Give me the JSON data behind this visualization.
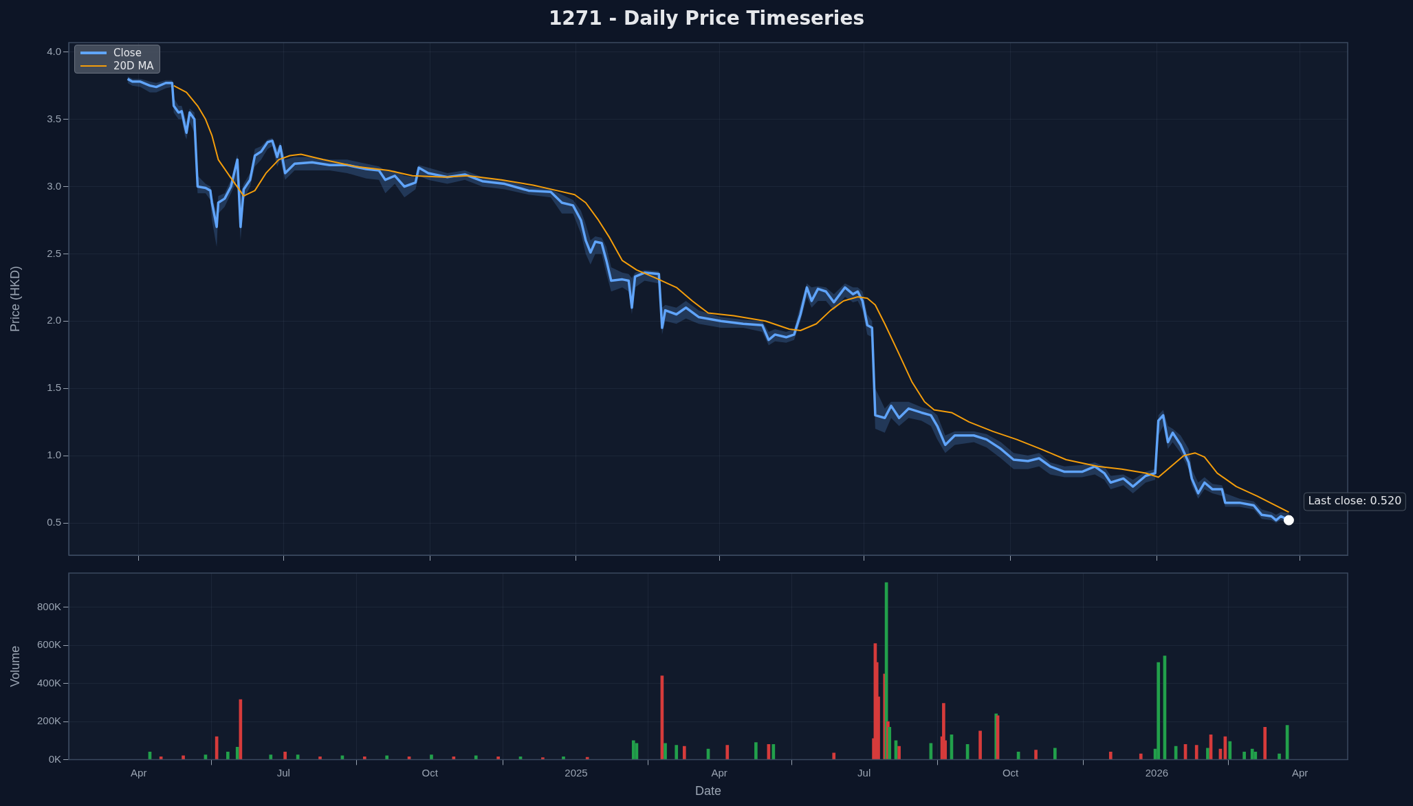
{
  "chart_data": [
    {
      "type": "line",
      "title": "1271 - Daily Price Timeseries",
      "ylabel": "Price (HKD)",
      "legend": "top left",
      "grid": true,
      "tick_labels": "y",
      "xlim": [
        "2024-02-17",
        "2026-05-01"
      ],
      "xticks": [
        {
          "value": "2024-04-01",
          "label": null
        },
        {
          "value": "2024-07-01",
          "label": null
        },
        {
          "value": "2024-10-01",
          "label": null
        },
        {
          "value": "2025-01-01",
          "label": null
        },
        {
          "value": "2025-04-01",
          "label": null
        },
        {
          "value": "2025-07-01",
          "label": null
        },
        {
          "value": "2025-10-01",
          "label": null
        },
        {
          "value": "2026-01-01",
          "label": null
        },
        {
          "value": "2026-04-01",
          "label": null
        }
      ],
      "ylim": [
        0.26,
        4.07
      ],
      "yticks": [
        {
          "value": 0.5,
          "label": "0.5"
        },
        {
          "value": 1.0,
          "label": "1.0"
        },
        {
          "value": 1.5,
          "label": "1.5"
        },
        {
          "value": 2.0,
          "label": "2.0"
        },
        {
          "value": 2.5,
          "label": "2.5"
        },
        {
          "value": 3.0,
          "label": "3.0"
        },
        {
          "value": 3.5,
          "label": "3.5"
        },
        {
          "value": 4.0,
          "label": "4.0"
        }
      ],
      "annotations": [
        {
          "text": "Last close: 0.520",
          "x": "2026-03-25",
          "y": 0.52
        }
      ],
      "series": [
        {
          "name": "Close",
          "color": "#60a5fa",
          "x": [
            "2024-03-25",
            "2024-03-28",
            "2024-04-02",
            "2024-04-08",
            "2024-04-12",
            "2024-04-18",
            "2024-04-22",
            "2024-04-23",
            "2024-04-26",
            "2024-04-28",
            "2024-04-30",
            "2024-05-01",
            "2024-05-03",
            "2024-05-06",
            "2024-05-08",
            "2024-05-13",
            "2024-05-16",
            "2024-05-17",
            "2024-05-20",
            "2024-05-21",
            "2024-05-25",
            "2024-05-29",
            "2024-06-02",
            "2024-06-04",
            "2024-06-06",
            "2024-06-10",
            "2024-06-13",
            "2024-06-17",
            "2024-06-21",
            "2024-06-24",
            "2024-06-27",
            "2024-06-29",
            "2024-07-02",
            "2024-07-08",
            "2024-07-19",
            "2024-07-30",
            "2024-08-10",
            "2024-08-22",
            "2024-08-30",
            "2024-09-03",
            "2024-09-09",
            "2024-09-15",
            "2024-09-22",
            "2024-09-24",
            "2024-09-30",
            "2024-10-12",
            "2024-10-23",
            "2024-11-03",
            "2024-11-17",
            "2024-12-02",
            "2024-12-16",
            "2024-12-23",
            "2024-12-30",
            "2025-01-04",
            "2025-01-07",
            "2025-01-10",
            "2025-01-13",
            "2025-01-17",
            "2025-01-20",
            "2025-01-23",
            "2025-01-30",
            "2025-02-03",
            "2025-02-05",
            "2025-02-07",
            "2025-02-13",
            "2025-02-22",
            "2025-02-24",
            "2025-02-26",
            "2025-03-05",
            "2025-03-11",
            "2025-03-19",
            "2025-04-02",
            "2025-04-16",
            "2025-04-28",
            "2025-05-02",
            "2025-05-06",
            "2025-05-13",
            "2025-05-18",
            "2025-05-22",
            "2025-05-26",
            "2025-05-29",
            "2025-06-02",
            "2025-06-07",
            "2025-06-12",
            "2025-06-19",
            "2025-06-24",
            "2025-06-27",
            "2025-06-30",
            "2025-07-03",
            "2025-07-06",
            "2025-07-08",
            "2025-07-14",
            "2025-07-18",
            "2025-07-23",
            "2025-07-29",
            "2025-08-06",
            "2025-08-12",
            "2025-08-16",
            "2025-08-21",
            "2025-08-27",
            "2025-09-08",
            "2025-09-16",
            "2025-09-25",
            "2025-10-03",
            "2025-10-12",
            "2025-10-19",
            "2025-10-26",
            "2025-11-04",
            "2025-11-15",
            "2025-11-23",
            "2025-11-29",
            "2025-12-03",
            "2025-12-11",
            "2025-12-17",
            "2025-12-25",
            "2025-12-31",
            "2026-01-02",
            "2026-01-05",
            "2026-01-08",
            "2026-01-11",
            "2026-01-16",
            "2026-01-21",
            "2026-01-23",
            "2026-01-27",
            "2026-01-31",
            "2026-02-05",
            "2026-02-11",
            "2026-02-13",
            "2026-02-22",
            "2026-03-03",
            "2026-03-08",
            "2026-03-14",
            "2026-03-17",
            "2026-03-20",
            "2026-03-25"
          ],
          "values": [
            3.8,
            3.78,
            3.78,
            3.75,
            3.74,
            3.77,
            3.77,
            3.6,
            3.55,
            3.56,
            3.45,
            3.4,
            3.55,
            3.5,
            3.0,
            2.99,
            2.97,
            2.88,
            2.7,
            2.88,
            2.91,
            3.0,
            3.2,
            2.7,
            2.98,
            3.05,
            3.23,
            3.26,
            3.33,
            3.34,
            3.22,
            3.3,
            3.1,
            3.17,
            3.18,
            3.16,
            3.16,
            3.13,
            3.12,
            3.05,
            3.08,
            3.0,
            3.03,
            3.14,
            3.1,
            3.07,
            3.09,
            3.04,
            3.02,
            2.97,
            2.96,
            2.88,
            2.86,
            2.75,
            2.6,
            2.51,
            2.59,
            2.58,
            2.45,
            2.3,
            2.31,
            2.3,
            2.1,
            2.33,
            2.36,
            2.35,
            1.95,
            2.08,
            2.05,
            2.1,
            2.03,
            2.0,
            1.98,
            1.97,
            1.86,
            1.9,
            1.88,
            1.9,
            2.05,
            2.25,
            2.15,
            2.24,
            2.22,
            2.14,
            2.25,
            2.2,
            2.22,
            2.15,
            1.97,
            1.95,
            1.3,
            1.28,
            1.37,
            1.28,
            1.35,
            1.32,
            1.3,
            1.22,
            1.08,
            1.15,
            1.15,
            1.12,
            1.05,
            0.97,
            0.96,
            0.98,
            0.92,
            0.88,
            0.88,
            0.92,
            0.87,
            0.8,
            0.83,
            0.77,
            0.85,
            0.87,
            1.26,
            1.3,
            1.1,
            1.17,
            1.08,
            0.95,
            0.83,
            0.72,
            0.8,
            0.75,
            0.75,
            0.65,
            0.65,
            0.63,
            0.56,
            0.55,
            0.52,
            0.55,
            0.52
          ],
          "lower": [
            3.77,
            3.75,
            3.74,
            3.7,
            3.7,
            3.73,
            3.74,
            3.55,
            3.5,
            3.5,
            3.38,
            3.35,
            3.48,
            3.4,
            2.95,
            2.95,
            2.9,
            2.75,
            2.55,
            2.8,
            2.85,
            2.95,
            3.05,
            2.6,
            2.9,
            3.0,
            3.15,
            3.2,
            3.28,
            3.3,
            3.15,
            3.2,
            3.05,
            3.12,
            3.12,
            3.12,
            3.1,
            3.06,
            3.05,
            2.95,
            3.02,
            2.92,
            2.98,
            3.08,
            3.05,
            3.02,
            3.05,
            3.0,
            2.98,
            2.94,
            2.92,
            2.8,
            2.8,
            2.65,
            2.5,
            2.42,
            2.5,
            2.5,
            2.35,
            2.22,
            2.25,
            2.22,
            2.05,
            2.25,
            2.3,
            2.28,
            1.9,
            2.0,
            1.98,
            2.02,
            1.98,
            1.95,
            1.95,
            1.92,
            1.82,
            1.85,
            1.84,
            1.86,
            2.0,
            2.18,
            2.1,
            2.15,
            2.15,
            2.08,
            2.18,
            2.14,
            2.15,
            2.08,
            1.9,
            1.88,
            1.2,
            1.17,
            1.28,
            1.22,
            1.28,
            1.26,
            1.22,
            1.12,
            1.02,
            1.08,
            1.1,
            1.06,
            0.98,
            0.9,
            0.9,
            0.92,
            0.86,
            0.84,
            0.84,
            0.86,
            0.82,
            0.75,
            0.78,
            0.72,
            0.8,
            0.82,
            1.15,
            1.22,
            1.05,
            1.1,
            1.02,
            0.9,
            0.78,
            0.68,
            0.75,
            0.72,
            0.7,
            0.62,
            0.62,
            0.6,
            0.53,
            0.52,
            0.5,
            0.52,
            0.5
          ],
          "upper": [
            3.82,
            3.8,
            3.8,
            3.78,
            3.77,
            3.79,
            3.79,
            3.66,
            3.6,
            3.6,
            3.52,
            3.48,
            3.58,
            3.55,
            3.08,
            3.02,
            3.0,
            2.93,
            2.8,
            2.93,
            2.95,
            3.05,
            3.24,
            2.95,
            3.02,
            3.1,
            3.28,
            3.3,
            3.35,
            3.36,
            3.28,
            3.33,
            3.2,
            3.22,
            3.22,
            3.2,
            3.2,
            3.17,
            3.15,
            3.12,
            3.12,
            3.08,
            3.07,
            3.16,
            3.14,
            3.1,
            3.12,
            3.07,
            3.05,
            3.0,
            2.98,
            2.94,
            2.9,
            2.82,
            2.72,
            2.6,
            2.63,
            2.62,
            2.55,
            2.4,
            2.36,
            2.35,
            2.32,
            2.36,
            2.38,
            2.37,
            2.1,
            2.12,
            2.1,
            2.15,
            2.08,
            2.03,
            2.01,
            2.0,
            1.92,
            1.94,
            1.92,
            1.94,
            2.12,
            2.28,
            2.25,
            2.26,
            2.25,
            2.2,
            2.28,
            2.25,
            2.25,
            2.22,
            2.05,
            2.0,
            1.5,
            1.35,
            1.4,
            1.4,
            1.4,
            1.36,
            1.34,
            1.3,
            1.15,
            1.18,
            1.18,
            1.16,
            1.1,
            1.02,
            1.0,
            1.02,
            0.95,
            0.92,
            0.93,
            0.95,
            0.92,
            0.85,
            0.86,
            0.82,
            0.88,
            0.9,
            1.3,
            1.34,
            1.22,
            1.2,
            1.15,
            1.05,
            0.9,
            0.8,
            0.84,
            0.79,
            0.78,
            0.72,
            0.68,
            0.66,
            0.6,
            0.58,
            0.56,
            0.58,
            0.57
          ]
        },
        {
          "name": "20D MA",
          "color": "#f59e0b",
          "x": [
            "2024-04-23",
            "2024-05-01",
            "2024-05-08",
            "2024-05-13",
            "2024-05-17",
            "2024-05-21",
            "2024-05-28",
            "2024-06-03",
            "2024-06-06",
            "2024-06-13",
            "2024-06-20",
            "2024-06-28",
            "2024-07-05",
            "2024-07-12",
            "2024-07-26",
            "2024-08-15",
            "2024-09-05",
            "2024-09-20",
            "2024-10-10",
            "2024-10-25",
            "2024-11-15",
            "2024-12-05",
            "2024-12-20",
            "2024-12-31",
            "2025-01-07",
            "2025-01-15",
            "2025-01-22",
            "2025-01-30",
            "2025-02-08",
            "2025-02-20",
            "2025-03-05",
            "2025-03-15",
            "2025-03-25",
            "2025-04-10",
            "2025-04-30",
            "2025-05-15",
            "2025-05-22",
            "2025-06-01",
            "2025-06-10",
            "2025-06-18",
            "2025-06-27",
            "2025-07-03",
            "2025-07-08",
            "2025-07-14",
            "2025-07-22",
            "2025-07-31",
            "2025-08-08",
            "2025-08-14",
            "2025-08-25",
            "2025-09-05",
            "2025-09-20",
            "2025-10-05",
            "2025-10-20",
            "2025-11-05",
            "2025-11-25",
            "2025-12-10",
            "2025-12-25",
            "2026-01-02",
            "2026-01-10",
            "2026-01-18",
            "2026-01-25",
            "2026-01-31",
            "2026-02-08",
            "2026-02-20",
            "2026-03-05",
            "2026-03-15",
            "2026-03-25"
          ],
          "values": [
            3.75,
            3.7,
            3.6,
            3.5,
            3.38,
            3.2,
            3.08,
            2.98,
            2.93,
            2.97,
            3.1,
            3.2,
            3.23,
            3.24,
            3.2,
            3.15,
            3.12,
            3.08,
            3.07,
            3.08,
            3.05,
            3.01,
            2.97,
            2.94,
            2.88,
            2.75,
            2.62,
            2.45,
            2.38,
            2.32,
            2.25,
            2.15,
            2.06,
            2.04,
            2.0,
            1.94,
            1.93,
            1.98,
            2.08,
            2.15,
            2.18,
            2.17,
            2.12,
            1.98,
            1.78,
            1.55,
            1.4,
            1.34,
            1.32,
            1.25,
            1.18,
            1.12,
            1.05,
            0.97,
            0.92,
            0.9,
            0.87,
            0.84,
            0.92,
            1.0,
            1.02,
            0.99,
            0.87,
            0.77,
            0.7,
            0.64,
            0.58
          ]
        },
        {
          "type": "scatter",
          "color": "#ffffff",
          "marker": "circle",
          "x": [
            "2026-03-25"
          ],
          "values": [
            0.52
          ]
        }
      ]
    },
    {
      "type": "bar",
      "xlabel": "Date",
      "ylabel": "Volume",
      "grid": true,
      "xlim": [
        "2024-02-17",
        "2026-05-01"
      ],
      "xticks": [
        {
          "value": "2024-04-01",
          "label": "Apr"
        },
        {
          "value": "2024-07-01",
          "label": "Jul"
        },
        {
          "value": "2024-10-01",
          "label": "Oct"
        },
        {
          "value": "2025-01-01",
          "label": "2025"
        },
        {
          "value": "2025-04-01",
          "label": "Apr"
        },
        {
          "value": "2025-07-01",
          "label": "Jul"
        },
        {
          "value": "2025-10-01",
          "label": "Oct"
        },
        {
          "value": "2026-01-01",
          "label": "2026"
        },
        {
          "value": "2026-04-01",
          "label": "Apr"
        }
      ],
      "ylim": [
        0,
        980000
      ],
      "yticks": [
        {
          "value": 0,
          "label": "0K"
        },
        {
          "value": 200000,
          "label": "200K"
        },
        {
          "value": 400000,
          "label": "400K"
        },
        {
          "value": 600000,
          "label": "600K"
        },
        {
          "value": 800000,
          "label": "800K"
        }
      ],
      "series": [
        {
          "x": [
            "2024-04-08",
            "2024-04-15",
            "2024-04-29",
            "2024-05-13",
            "2024-05-20",
            "2024-05-27",
            "2024-06-02",
            "2024-06-04",
            "2024-06-23",
            "2024-07-02",
            "2024-07-10",
            "2024-07-24",
            "2024-08-07",
            "2024-08-21",
            "2024-09-04",
            "2024-09-18",
            "2024-10-02",
            "2024-10-16",
            "2024-10-30",
            "2024-11-13",
            "2024-11-27",
            "2024-12-11",
            "2024-12-24",
            "2025-01-08",
            "2025-02-06",
            "2025-02-08",
            "2025-02-24",
            "2025-02-26",
            "2025-03-05",
            "2025-03-10",
            "2025-03-25",
            "2025-04-06",
            "2025-04-24",
            "2025-05-02",
            "2025-05-05",
            "2025-06-12",
            "2025-07-07",
            "2025-07-08",
            "2025-07-09",
            "2025-07-10",
            "2025-07-14",
            "2025-07-15",
            "2025-07-16",
            "2025-07-17",
            "2025-07-21",
            "2025-07-23",
            "2025-08-12",
            "2025-08-19",
            "2025-08-20",
            "2025-08-21",
            "2025-08-25",
            "2025-09-04",
            "2025-09-12",
            "2025-09-22",
            "2025-09-23",
            "2025-10-06",
            "2025-10-17",
            "2025-10-29",
            "2025-12-03",
            "2025-12-22",
            "2025-12-31",
            "2026-01-02",
            "2026-01-06",
            "2026-01-13",
            "2026-01-19",
            "2026-01-26",
            "2026-02-02",
            "2026-02-04",
            "2026-02-10",
            "2026-02-13",
            "2026-02-16",
            "2026-02-25",
            "2026-03-02",
            "2026-03-04",
            "2026-03-10",
            "2026-03-19",
            "2026-03-24"
          ],
          "values": [
            40000,
            15000,
            20000,
            25000,
            120000,
            40000,
            65000,
            315000,
            25000,
            40000,
            25000,
            15000,
            20000,
            15000,
            20000,
            15000,
            25000,
            15000,
            20000,
            15000,
            15000,
            10000,
            15000,
            12000,
            100000,
            85000,
            440000,
            85000,
            75000,
            70000,
            55000,
            75000,
            90000,
            80000,
            80000,
            35000,
            110000,
            610000,
            510000,
            330000,
            450000,
            930000,
            200000,
            170000,
            100000,
            70000,
            85000,
            120000,
            295000,
            100000,
            130000,
            80000,
            150000,
            240000,
            230000,
            40000,
            50000,
            60000,
            40000,
            30000,
            55000,
            510000,
            545000,
            70000,
            80000,
            75000,
            60000,
            130000,
            55000,
            120000,
            95000,
            40000,
            55000,
            40000,
            170000,
            30000,
            180000
          ],
          "colors": [
            "#22a04b",
            "#d63b3b",
            "#d63b3b",
            "#22a04b",
            "#d63b3b",
            "#22a04b",
            "#22a04b",
            "#d63b3b",
            "#22a04b",
            "#d63b3b",
            "#22a04b",
            "#d63b3b",
            "#22a04b",
            "#d63b3b",
            "#22a04b",
            "#d63b3b",
            "#22a04b",
            "#d63b3b",
            "#22a04b",
            "#d63b3b",
            "#22a04b",
            "#d63b3b",
            "#22a04b",
            "#d63b3b",
            "#22a04b",
            "#22a04b",
            "#d63b3b",
            "#22a04b",
            "#22a04b",
            "#d63b3b",
            "#22a04b",
            "#d63b3b",
            "#22a04b",
            "#d63b3b",
            "#22a04b",
            "#d63b3b",
            "#d63b3b",
            "#d63b3b",
            "#d63b3b",
            "#d63b3b",
            "#d63b3b",
            "#22a04b",
            "#d63b3b",
            "#22a04b",
            "#22a04b",
            "#d63b3b",
            "#22a04b",
            "#d63b3b",
            "#d63b3b",
            "#d63b3b",
            "#22a04b",
            "#22a04b",
            "#d63b3b",
            "#22a04b",
            "#d63b3b",
            "#22a04b",
            "#d63b3b",
            "#22a04b",
            "#d63b3b",
            "#d63b3b",
            "#22a04b",
            "#22a04b",
            "#22a04b",
            "#22a04b",
            "#d63b3b",
            "#d63b3b",
            "#22a04b",
            "#d63b3b",
            "#d63b3b",
            "#d63b3b",
            "#22a04b",
            "#22a04b",
            "#22a04b",
            "#22a04b",
            "#d63b3b",
            "#22a04b",
            "#22a04b"
          ]
        }
      ]
    }
  ]
}
